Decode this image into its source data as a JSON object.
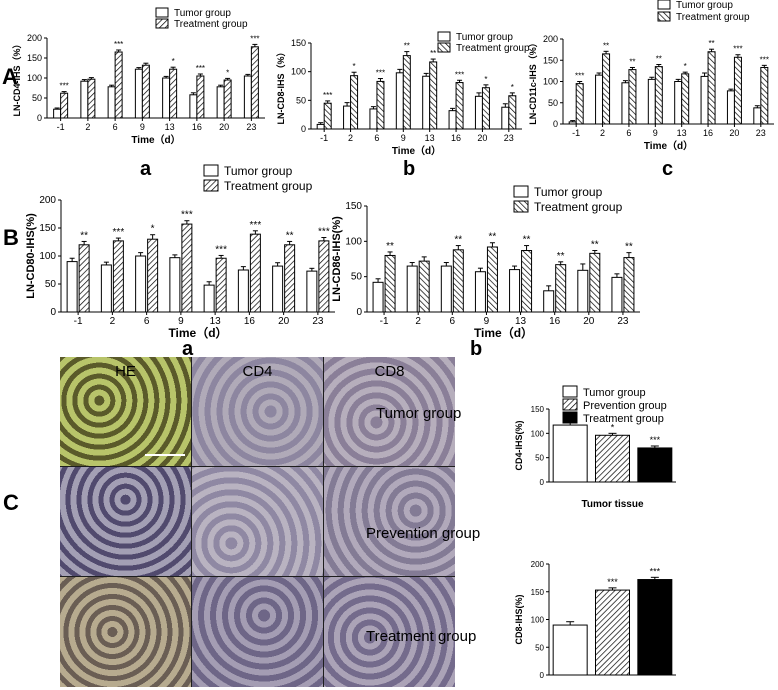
{
  "panel_labels": {
    "A": "A",
    "B": "B",
    "C": "C"
  },
  "sub_labels": {
    "Aa": "a",
    "Ab": "b",
    "Ac": "c",
    "Ba": "a",
    "Bb": "b"
  },
  "micro": {
    "columns": [
      "HE",
      "CD4",
      "CD8"
    ],
    "rows": [
      "Tumor group",
      "Prevention group",
      "Treatment group"
    ]
  },
  "colors": {
    "he_bg": "#a8b464",
    "ihc_bg": "#9a94a8",
    "cell_dark": "#4a3f6a"
  },
  "chart_data": [
    {
      "type": "bar",
      "ylabel": "LN-CD4-IHS（%）",
      "xlabel": "Time（d）",
      "ylim": [
        0,
        200
      ],
      "yticks": [
        0,
        50,
        100,
        150,
        200
      ],
      "categories": [
        "-1",
        "2",
        "6",
        "9",
        "13",
        "16",
        "20",
        "23"
      ],
      "series": [
        {
          "name": "Tumor group",
          "values": [
            22,
            92,
            78,
            122,
            100,
            58,
            78,
            105
          ],
          "errors": [
            3,
            4,
            4,
            4,
            4,
            5,
            4,
            4
          ]
        },
        {
          "name": "Treatment group",
          "values": [
            62,
            97,
            165,
            132,
            122,
            105,
            95,
            178
          ],
          "errors": [
            4,
            4,
            5,
            5,
            5,
            5,
            4,
            6
          ]
        }
      ],
      "significance": [
        "***",
        "",
        "***",
        "",
        "*",
        "***",
        "*",
        "***"
      ]
    },
    {
      "type": "bar",
      "ylabel": "LN-CD8-IHS（%）",
      "xlabel": "Time（d）",
      "ylim": [
        0,
        150
      ],
      "yticks": [
        0,
        50,
        100,
        150
      ],
      "categories": [
        "-1",
        "2",
        "6",
        "9",
        "13",
        "16",
        "20",
        "23"
      ],
      "series": [
        {
          "name": "Tumor group",
          "values": [
            8,
            40,
            35,
            98,
            92,
            32,
            57,
            38
          ],
          "errors": [
            3,
            6,
            4,
            6,
            5,
            4,
            6,
            6
          ]
        },
        {
          "name": "Treatment group",
          "values": [
            45,
            93,
            83,
            128,
            117,
            81,
            72,
            58
          ],
          "errors": [
            4,
            6,
            5,
            7,
            5,
            4,
            5,
            5
          ]
        }
      ],
      "significance": [
        "***",
        "*",
        "***",
        "**",
        "**",
        "***",
        "*",
        "*"
      ]
    },
    {
      "type": "bar",
      "ylabel": "LN-CD11c-IHS（%）",
      "xlabel": "Time（d）",
      "ylim": [
        0,
        200
      ],
      "yticks": [
        0,
        50,
        100,
        150,
        200
      ],
      "categories": [
        "-1",
        "2",
        "6",
        "9",
        "13",
        "16",
        "20",
        "23"
      ],
      "series": [
        {
          "name": "Tumor group",
          "values": [
            5,
            115,
            97,
            105,
            100,
            112,
            78,
            38
          ],
          "errors": [
            3,
            5,
            5,
            5,
            5,
            8,
            4,
            5
          ]
        },
        {
          "name": "Treatment group",
          "values": [
            95,
            165,
            128,
            135,
            118,
            170,
            157,
            133
          ],
          "errors": [
            5,
            6,
            5,
            5,
            4,
            6,
            6,
            5
          ]
        }
      ],
      "significance": [
        "***",
        "**",
        "**",
        "**",
        "*",
        "**",
        "***",
        "***"
      ]
    },
    {
      "type": "bar",
      "ylabel": "LN-CD80-IHS(%)",
      "xlabel": "Time（d）",
      "ylim": [
        0,
        200
      ],
      "yticks": [
        0,
        50,
        100,
        150,
        200
      ],
      "categories": [
        "-1",
        "2",
        "6",
        "9",
        "13",
        "16",
        "20",
        "23"
      ],
      "series": [
        {
          "name": "Tumor group",
          "values": [
            90,
            84,
            100,
            97,
            48,
            75,
            82,
            73
          ],
          "errors": [
            6,
            5,
            6,
            5,
            6,
            6,
            6,
            5
          ]
        },
        {
          "name": "Treatment group",
          "values": [
            120,
            127,
            130,
            157,
            96,
            139,
            120,
            127
          ],
          "errors": [
            6,
            5,
            8,
            6,
            5,
            6,
            6,
            6
          ]
        }
      ],
      "significance": [
        "**",
        "***",
        "*",
        "***",
        "***",
        "***",
        "**",
        "***"
      ]
    },
    {
      "type": "bar",
      "ylabel": "LN-CD86-IHS(%)",
      "xlabel": "Time（d）",
      "ylim": [
        0,
        150
      ],
      "yticks": [
        0,
        50,
        100,
        150
      ],
      "categories": [
        "-1",
        "2",
        "6",
        "9",
        "13",
        "16",
        "20",
        "23"
      ],
      "series": [
        {
          "name": "Tumor group",
          "values": [
            42,
            65,
            65,
            57,
            60,
            30,
            59,
            49
          ],
          "errors": [
            5,
            5,
            5,
            5,
            5,
            7,
            9,
            5
          ]
        },
        {
          "name": "Treatment group",
          "values": [
            80,
            72,
            88,
            92,
            87,
            67,
            83,
            77
          ],
          "errors": [
            5,
            6,
            6,
            6,
            7,
            4,
            4,
            7
          ]
        }
      ],
      "significance": [
        "**",
        "",
        "**",
        "**",
        "**",
        "**",
        "**",
        "**"
      ]
    },
    {
      "type": "bar",
      "ylabel": "CD4-IHS(%)",
      "xlabel": "Tumor tissue",
      "ylim": [
        0,
        150
      ],
      "yticks": [
        0,
        50,
        100,
        150
      ],
      "categories": [
        "Tumor group",
        "Prevention group",
        "Treatment group"
      ],
      "values": [
        117,
        96,
        70
      ],
      "errors": [
        5,
        4,
        4
      ],
      "significance": [
        "",
        "*",
        "***"
      ]
    },
    {
      "type": "bar",
      "ylabel": "CD8-IHS(%)",
      "xlabel": "Tumor tissue",
      "ylim": [
        0,
        200
      ],
      "yticks": [
        0,
        50,
        100,
        150,
        200
      ],
      "categories": [
        "Tumor group",
        "Prevention group",
        "Treatment group"
      ],
      "values": [
        90,
        153,
        172
      ],
      "errors": [
        6,
        4,
        4
      ],
      "significance": [
        "",
        "***",
        "***"
      ]
    }
  ]
}
